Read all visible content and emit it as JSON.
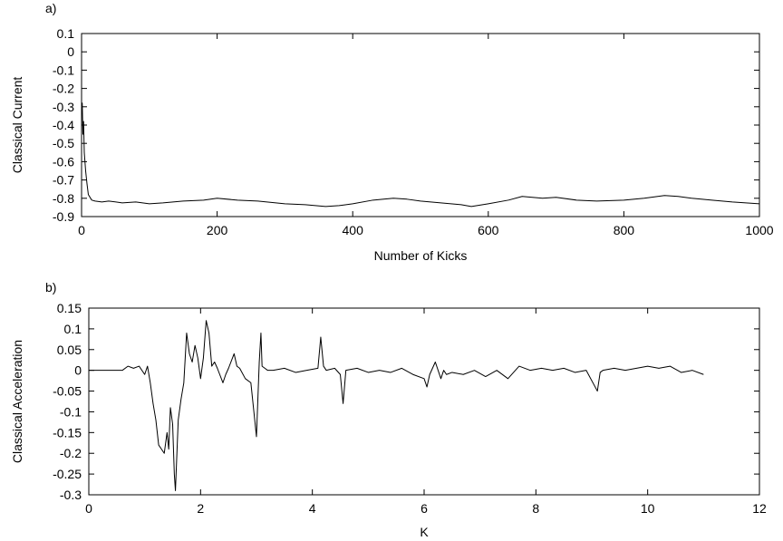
{
  "chart_data": [
    {
      "type": "line",
      "panel_label": "a)",
      "title": "",
      "xlabel": "Number of Kicks",
      "ylabel": "Classical Current",
      "xlim": [
        0,
        1000
      ],
      "ylim": [
        -0.9,
        0.1
      ],
      "xticks": [
        0,
        200,
        400,
        600,
        800,
        1000
      ],
      "xtick_labels": [
        "0",
        "200",
        "400",
        "600",
        "800",
        "1000"
      ],
      "yticks": [
        0.1,
        0,
        -0.1,
        -0.2,
        -0.3,
        -0.4,
        -0.5,
        -0.6,
        -0.7,
        -0.8,
        -0.9
      ],
      "ytick_labels": [
        "0.1",
        "0",
        "-0.1",
        "-0.2",
        "-0.3",
        "-0.4",
        "-0.5",
        "-0.6",
        "-0.7",
        "-0.8",
        "-0.9"
      ],
      "grid": false,
      "legend": "none",
      "color": "#000000",
      "series": [
        {
          "x": [
            0,
            1,
            2,
            3,
            4,
            6,
            8,
            10,
            15,
            20,
            30,
            40,
            60,
            80,
            100,
            120,
            150,
            180,
            200,
            230,
            260,
            300,
            330,
            360,
            380,
            400,
            430,
            460,
            480,
            500,
            530,
            560,
            575,
            600,
            630,
            650,
            680,
            700,
            730,
            760,
            800,
            830,
            860,
            880,
            900,
            930,
            960,
            980,
            1000
          ],
          "y": [
            -0.3,
            -0.28,
            -0.45,
            -0.38,
            -0.55,
            -0.65,
            -0.72,
            -0.78,
            -0.81,
            -0.815,
            -0.82,
            -0.815,
            -0.825,
            -0.82,
            -0.83,
            -0.825,
            -0.815,
            -0.81,
            -0.8,
            -0.81,
            -0.815,
            -0.83,
            -0.835,
            -0.845,
            -0.84,
            -0.83,
            -0.81,
            -0.8,
            -0.805,
            -0.815,
            -0.825,
            -0.835,
            -0.845,
            -0.83,
            -0.81,
            -0.79,
            -0.8,
            -0.795,
            -0.81,
            -0.815,
            -0.81,
            -0.8,
            -0.785,
            -0.79,
            -0.8,
            -0.81,
            -0.82,
            -0.825,
            -0.83
          ]
        }
      ]
    },
    {
      "type": "line",
      "panel_label": "b)",
      "title": "",
      "xlabel": "K",
      "ylabel": "Classical Acceleration",
      "xlim": [
        0,
        12
      ],
      "ylim": [
        -0.3,
        0.15
      ],
      "xticks": [
        0,
        2,
        4,
        6,
        8,
        10,
        12
      ],
      "xtick_labels": [
        "0",
        "2",
        "4",
        "6",
        "8",
        "10",
        "12"
      ],
      "yticks": [
        0.15,
        0.1,
        0.05,
        0,
        -0.05,
        -0.1,
        -0.15,
        -0.2,
        -0.25,
        -0.3
      ],
      "ytick_labels": [
        "0.15",
        "0.1",
        "0.05",
        "0",
        "-0.05",
        "-0.1",
        "-0.15",
        "-0.2",
        "-0.25",
        "-0.3"
      ],
      "grid": false,
      "legend": "none",
      "color": "#000000",
      "series": [
        {
          "x": [
            0,
            0.6,
            0.7,
            0.8,
            0.9,
            1.0,
            1.05,
            1.1,
            1.15,
            1.2,
            1.25,
            1.3,
            1.35,
            1.4,
            1.43,
            1.46,
            1.5,
            1.53,
            1.55,
            1.6,
            1.65,
            1.7,
            1.75,
            1.8,
            1.85,
            1.9,
            1.95,
            2.0,
            2.05,
            2.1,
            2.15,
            2.2,
            2.25,
            2.3,
            2.4,
            2.45,
            2.5,
            2.6,
            2.65,
            2.7,
            2.8,
            2.9,
            3.0,
            3.05,
            3.08,
            3.1,
            3.15,
            3.2,
            3.3,
            3.5,
            3.7,
            3.9,
            4.1,
            4.15,
            4.2,
            4.25,
            4.4,
            4.5,
            4.55,
            4.6,
            4.8,
            5.0,
            5.2,
            5.4,
            5.6,
            5.8,
            6.0,
            6.05,
            6.1,
            6.15,
            6.2,
            6.3,
            6.35,
            6.4,
            6.5,
            6.7,
            6.9,
            7.1,
            7.3,
            7.5,
            7.7,
            7.9,
            8.1,
            8.3,
            8.5,
            8.7,
            8.9,
            9.1,
            9.15,
            9.2,
            9.4,
            9.6,
            9.8,
            10.0,
            10.2,
            10.4,
            10.6,
            10.8,
            11.0
          ],
          "y": [
            0,
            0,
            0.01,
            0.005,
            0.01,
            -0.01,
            0.01,
            -0.03,
            -0.08,
            -0.12,
            -0.18,
            -0.19,
            -0.2,
            -0.15,
            -0.19,
            -0.09,
            -0.13,
            -0.25,
            -0.29,
            -0.12,
            -0.07,
            -0.03,
            0.09,
            0.04,
            0.02,
            0.06,
            0.03,
            -0.02,
            0.03,
            0.12,
            0.09,
            0.01,
            0.02,
            0.005,
            -0.03,
            -0.01,
            0.005,
            0.04,
            0.01,
            0.005,
            -0.02,
            -0.03,
            -0.16,
            0.02,
            0.09,
            0.01,
            0.005,
            0,
            0,
            0.005,
            -0.005,
            0,
            0.005,
            0.08,
            0.01,
            0,
            0.005,
            -0.01,
            -0.08,
            0,
            0.005,
            -0.005,
            0,
            -0.005,
            0.005,
            -0.01,
            -0.02,
            -0.04,
            -0.01,
            0.005,
            0.02,
            -0.02,
            0,
            -0.01,
            -0.005,
            -0.01,
            0,
            -0.015,
            0,
            -0.02,
            0.01,
            0,
            0.005,
            0,
            0.005,
            -0.005,
            0,
            -0.05,
            -0.005,
            0,
            0.005,
            0,
            0.005,
            0.01,
            0.005,
            0.01,
            -0.005,
            0,
            -0.01
          ]
        }
      ]
    }
  ]
}
